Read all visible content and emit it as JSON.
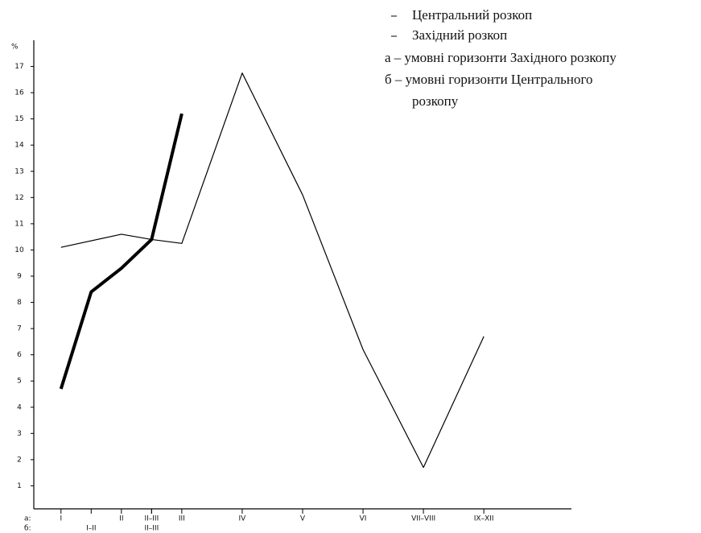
{
  "chart_data": {
    "type": "line",
    "y_unit_label": "%",
    "series": [
      {
        "name": "Центральний розкоп",
        "color": "#000",
        "width": 4,
        "x": [
          0,
          1,
          2,
          3,
          4
        ],
        "values": [
          4.7,
          8.4,
          9.3,
          10.4,
          15.2
        ]
      },
      {
        "name": "Західний розкоп",
        "color": "#000",
        "width": 1.2,
        "x": [
          0,
          2,
          3,
          4,
          6,
          8,
          10,
          12,
          14
        ],
        "values": [
          10.1,
          10.6,
          10.4,
          10.25,
          16.75,
          12.1,
          6.2,
          1.7,
          6.7
        ]
      }
    ],
    "notes": [
      "а – умовні горизонти Західного розкопу",
      "б – умовні горизонти Центрального",
      "розкопу"
    ],
    "x_row_labels": [
      "а:",
      "б:"
    ],
    "xticks": [
      {
        "value": 0,
        "label": "I"
      },
      {
        "value": 2,
        "label": "II"
      },
      {
        "value": 3,
        "label": "II–III"
      },
      {
        "value": 4,
        "label": "III"
      },
      {
        "value": 6,
        "label": "IV"
      },
      {
        "value": 8,
        "label": "V"
      },
      {
        "value": 10,
        "label": "VI"
      },
      {
        "value": 12,
        "label": "VII–VIII"
      },
      {
        "value": 14,
        "label": "IX–XII"
      }
    ],
    "xticks_b": [
      {
        "value": 1,
        "label": "I–II"
      },
      {
        "value": 3,
        "label": "II–III"
      }
    ],
    "xlim": [
      -0.9,
      16.9
    ],
    "ylim": [
      0,
      18
    ],
    "yticks": [
      1,
      2,
      3,
      4,
      5,
      6,
      7,
      8,
      9,
      10,
      11,
      12,
      13,
      14,
      15,
      16,
      17
    ]
  }
}
